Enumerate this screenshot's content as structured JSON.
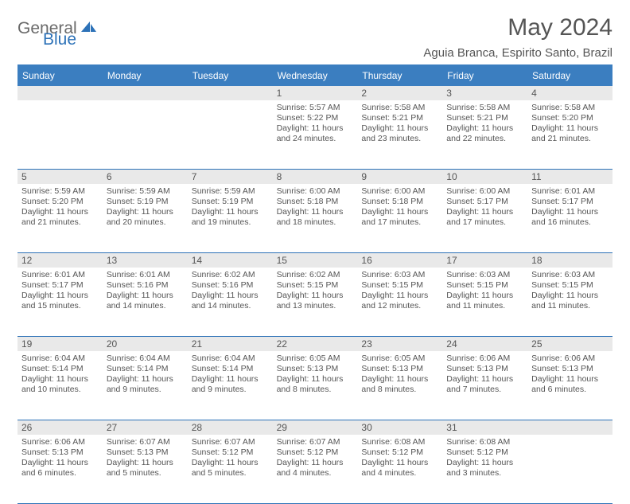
{
  "brand": {
    "part1": "General",
    "part2": "Blue"
  },
  "title": "May 2024",
  "location": "Aguia Branca, Espirito Santo, Brazil",
  "colors": {
    "header_bg": "#3b7ec0",
    "rule": "#2d72b8",
    "daynum_bg": "#e9e9e9",
    "text": "#555555",
    "page_bg": "#ffffff"
  },
  "weekdays": [
    "Sunday",
    "Monday",
    "Tuesday",
    "Wednesday",
    "Thursday",
    "Friday",
    "Saturday"
  ],
  "weeks": [
    [
      {
        "day": "",
        "lines": []
      },
      {
        "day": "",
        "lines": []
      },
      {
        "day": "",
        "lines": []
      },
      {
        "day": "1",
        "lines": [
          "Sunrise: 5:57 AM",
          "Sunset: 5:22 PM",
          "Daylight: 11 hours and 24 minutes."
        ]
      },
      {
        "day": "2",
        "lines": [
          "Sunrise: 5:58 AM",
          "Sunset: 5:21 PM",
          "Daylight: 11 hours and 23 minutes."
        ]
      },
      {
        "day": "3",
        "lines": [
          "Sunrise: 5:58 AM",
          "Sunset: 5:21 PM",
          "Daylight: 11 hours and 22 minutes."
        ]
      },
      {
        "day": "4",
        "lines": [
          "Sunrise: 5:58 AM",
          "Sunset: 5:20 PM",
          "Daylight: 11 hours and 21 minutes."
        ]
      }
    ],
    [
      {
        "day": "5",
        "lines": [
          "Sunrise: 5:59 AM",
          "Sunset: 5:20 PM",
          "Daylight: 11 hours and 21 minutes."
        ]
      },
      {
        "day": "6",
        "lines": [
          "Sunrise: 5:59 AM",
          "Sunset: 5:19 PM",
          "Daylight: 11 hours and 20 minutes."
        ]
      },
      {
        "day": "7",
        "lines": [
          "Sunrise: 5:59 AM",
          "Sunset: 5:19 PM",
          "Daylight: 11 hours and 19 minutes."
        ]
      },
      {
        "day": "8",
        "lines": [
          "Sunrise: 6:00 AM",
          "Sunset: 5:18 PM",
          "Daylight: 11 hours and 18 minutes."
        ]
      },
      {
        "day": "9",
        "lines": [
          "Sunrise: 6:00 AM",
          "Sunset: 5:18 PM",
          "Daylight: 11 hours and 17 minutes."
        ]
      },
      {
        "day": "10",
        "lines": [
          "Sunrise: 6:00 AM",
          "Sunset: 5:17 PM",
          "Daylight: 11 hours and 17 minutes."
        ]
      },
      {
        "day": "11",
        "lines": [
          "Sunrise: 6:01 AM",
          "Sunset: 5:17 PM",
          "Daylight: 11 hours and 16 minutes."
        ]
      }
    ],
    [
      {
        "day": "12",
        "lines": [
          "Sunrise: 6:01 AM",
          "Sunset: 5:17 PM",
          "Daylight: 11 hours and 15 minutes."
        ]
      },
      {
        "day": "13",
        "lines": [
          "Sunrise: 6:01 AM",
          "Sunset: 5:16 PM",
          "Daylight: 11 hours and 14 minutes."
        ]
      },
      {
        "day": "14",
        "lines": [
          "Sunrise: 6:02 AM",
          "Sunset: 5:16 PM",
          "Daylight: 11 hours and 14 minutes."
        ]
      },
      {
        "day": "15",
        "lines": [
          "Sunrise: 6:02 AM",
          "Sunset: 5:15 PM",
          "Daylight: 11 hours and 13 minutes."
        ]
      },
      {
        "day": "16",
        "lines": [
          "Sunrise: 6:03 AM",
          "Sunset: 5:15 PM",
          "Daylight: 11 hours and 12 minutes."
        ]
      },
      {
        "day": "17",
        "lines": [
          "Sunrise: 6:03 AM",
          "Sunset: 5:15 PM",
          "Daylight: 11 hours and 11 minutes."
        ]
      },
      {
        "day": "18",
        "lines": [
          "Sunrise: 6:03 AM",
          "Sunset: 5:15 PM",
          "Daylight: 11 hours and 11 minutes."
        ]
      }
    ],
    [
      {
        "day": "19",
        "lines": [
          "Sunrise: 6:04 AM",
          "Sunset: 5:14 PM",
          "Daylight: 11 hours and 10 minutes."
        ]
      },
      {
        "day": "20",
        "lines": [
          "Sunrise: 6:04 AM",
          "Sunset: 5:14 PM",
          "Daylight: 11 hours and 9 minutes."
        ]
      },
      {
        "day": "21",
        "lines": [
          "Sunrise: 6:04 AM",
          "Sunset: 5:14 PM",
          "Daylight: 11 hours and 9 minutes."
        ]
      },
      {
        "day": "22",
        "lines": [
          "Sunrise: 6:05 AM",
          "Sunset: 5:13 PM",
          "Daylight: 11 hours and 8 minutes."
        ]
      },
      {
        "day": "23",
        "lines": [
          "Sunrise: 6:05 AM",
          "Sunset: 5:13 PM",
          "Daylight: 11 hours and 8 minutes."
        ]
      },
      {
        "day": "24",
        "lines": [
          "Sunrise: 6:06 AM",
          "Sunset: 5:13 PM",
          "Daylight: 11 hours and 7 minutes."
        ]
      },
      {
        "day": "25",
        "lines": [
          "Sunrise: 6:06 AM",
          "Sunset: 5:13 PM",
          "Daylight: 11 hours and 6 minutes."
        ]
      }
    ],
    [
      {
        "day": "26",
        "lines": [
          "Sunrise: 6:06 AM",
          "Sunset: 5:13 PM",
          "Daylight: 11 hours and 6 minutes."
        ]
      },
      {
        "day": "27",
        "lines": [
          "Sunrise: 6:07 AM",
          "Sunset: 5:13 PM",
          "Daylight: 11 hours and 5 minutes."
        ]
      },
      {
        "day": "28",
        "lines": [
          "Sunrise: 6:07 AM",
          "Sunset: 5:12 PM",
          "Daylight: 11 hours and 5 minutes."
        ]
      },
      {
        "day": "29",
        "lines": [
          "Sunrise: 6:07 AM",
          "Sunset: 5:12 PM",
          "Daylight: 11 hours and 4 minutes."
        ]
      },
      {
        "day": "30",
        "lines": [
          "Sunrise: 6:08 AM",
          "Sunset: 5:12 PM",
          "Daylight: 11 hours and 4 minutes."
        ]
      },
      {
        "day": "31",
        "lines": [
          "Sunrise: 6:08 AM",
          "Sunset: 5:12 PM",
          "Daylight: 11 hours and 3 minutes."
        ]
      },
      {
        "day": "",
        "lines": []
      }
    ]
  ]
}
